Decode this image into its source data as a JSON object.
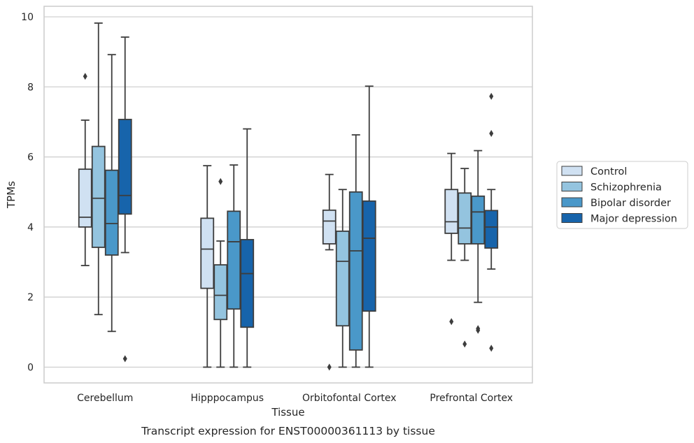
{
  "chart_data": {
    "type": "box",
    "caption": "Transcript expression for ENST00000361113 by tissue",
    "xlabel": "Tissue",
    "ylabel": "TPMs",
    "ylim": [
      -0.45,
      10.3
    ],
    "yticks": [
      0,
      2,
      4,
      6,
      8,
      10
    ],
    "grid": "horizontal",
    "legend_position": "right",
    "categories": [
      "Cerebellum",
      "Hipppocampus",
      "Orbitofontal Cortex",
      "Prefrontal Cortex"
    ],
    "series": [
      {
        "name": "Control",
        "color": "#d0e1f2",
        "boxes": [
          {
            "whislo": 2.9,
            "q1": 4.0,
            "med": 4.28,
            "q3": 5.65,
            "whishi": 7.05,
            "fliers": [
              8.3
            ]
          },
          {
            "whislo": 0.0,
            "q1": 2.25,
            "med": 3.37,
            "q3": 4.25,
            "whishi": 5.75,
            "fliers": []
          },
          {
            "whislo": 3.35,
            "q1": 3.52,
            "med": 4.17,
            "q3": 4.48,
            "whishi": 5.5,
            "fliers": [
              0.0
            ]
          },
          {
            "whislo": 3.05,
            "q1": 3.82,
            "med": 4.15,
            "q3": 5.07,
            "whishi": 6.1,
            "fliers": [
              1.3
            ]
          }
        ]
      },
      {
        "name": "Schizophrenia",
        "color": "#94c4df",
        "boxes": [
          {
            "whislo": 1.5,
            "q1": 3.42,
            "med": 4.82,
            "q3": 6.3,
            "whishi": 9.82,
            "fliers": []
          },
          {
            "whislo": 0.0,
            "q1": 1.36,
            "med": 2.05,
            "q3": 2.92,
            "whishi": 3.6,
            "fliers": [
              5.3
            ]
          },
          {
            "whislo": 0.0,
            "q1": 1.18,
            "med": 3.02,
            "q3": 3.88,
            "whishi": 5.07,
            "fliers": []
          },
          {
            "whislo": 3.05,
            "q1": 3.52,
            "med": 3.97,
            "q3": 4.97,
            "whishi": 5.67,
            "fliers": [
              0.66
            ]
          }
        ]
      },
      {
        "name": "Bipolar disorder",
        "color": "#4a98c9",
        "boxes": [
          {
            "whislo": 1.02,
            "q1": 3.2,
            "med": 4.1,
            "q3": 5.62,
            "whishi": 8.92,
            "fliers": []
          },
          {
            "whislo": 0.0,
            "q1": 1.66,
            "med": 3.58,
            "q3": 4.45,
            "whishi": 5.77,
            "fliers": []
          },
          {
            "whislo": 0.0,
            "q1": 0.49,
            "med": 3.32,
            "q3": 5.0,
            "whishi": 6.63,
            "fliers": []
          },
          {
            "whislo": 1.85,
            "q1": 3.52,
            "med": 4.43,
            "q3": 4.88,
            "whishi": 6.18,
            "fliers": [
              1.05,
              1.1
            ]
          }
        ]
      },
      {
        "name": "Major depression",
        "color": "#1764ab",
        "boxes": [
          {
            "whislo": 3.27,
            "q1": 4.37,
            "med": 4.9,
            "q3": 7.07,
            "whishi": 9.42,
            "fliers": [
              0.24
            ]
          },
          {
            "whislo": 0.0,
            "q1": 1.14,
            "med": 2.67,
            "q3": 3.64,
            "whishi": 6.8,
            "fliers": []
          },
          {
            "whislo": 0.0,
            "q1": 1.6,
            "med": 3.68,
            "q3": 4.74,
            "whishi": 8.02,
            "fliers": []
          },
          {
            "whislo": 2.8,
            "q1": 3.4,
            "med": 4.0,
            "q3": 4.47,
            "whishi": 5.07,
            "fliers": [
              7.73,
              6.67,
              0.54
            ]
          }
        ]
      }
    ]
  }
}
